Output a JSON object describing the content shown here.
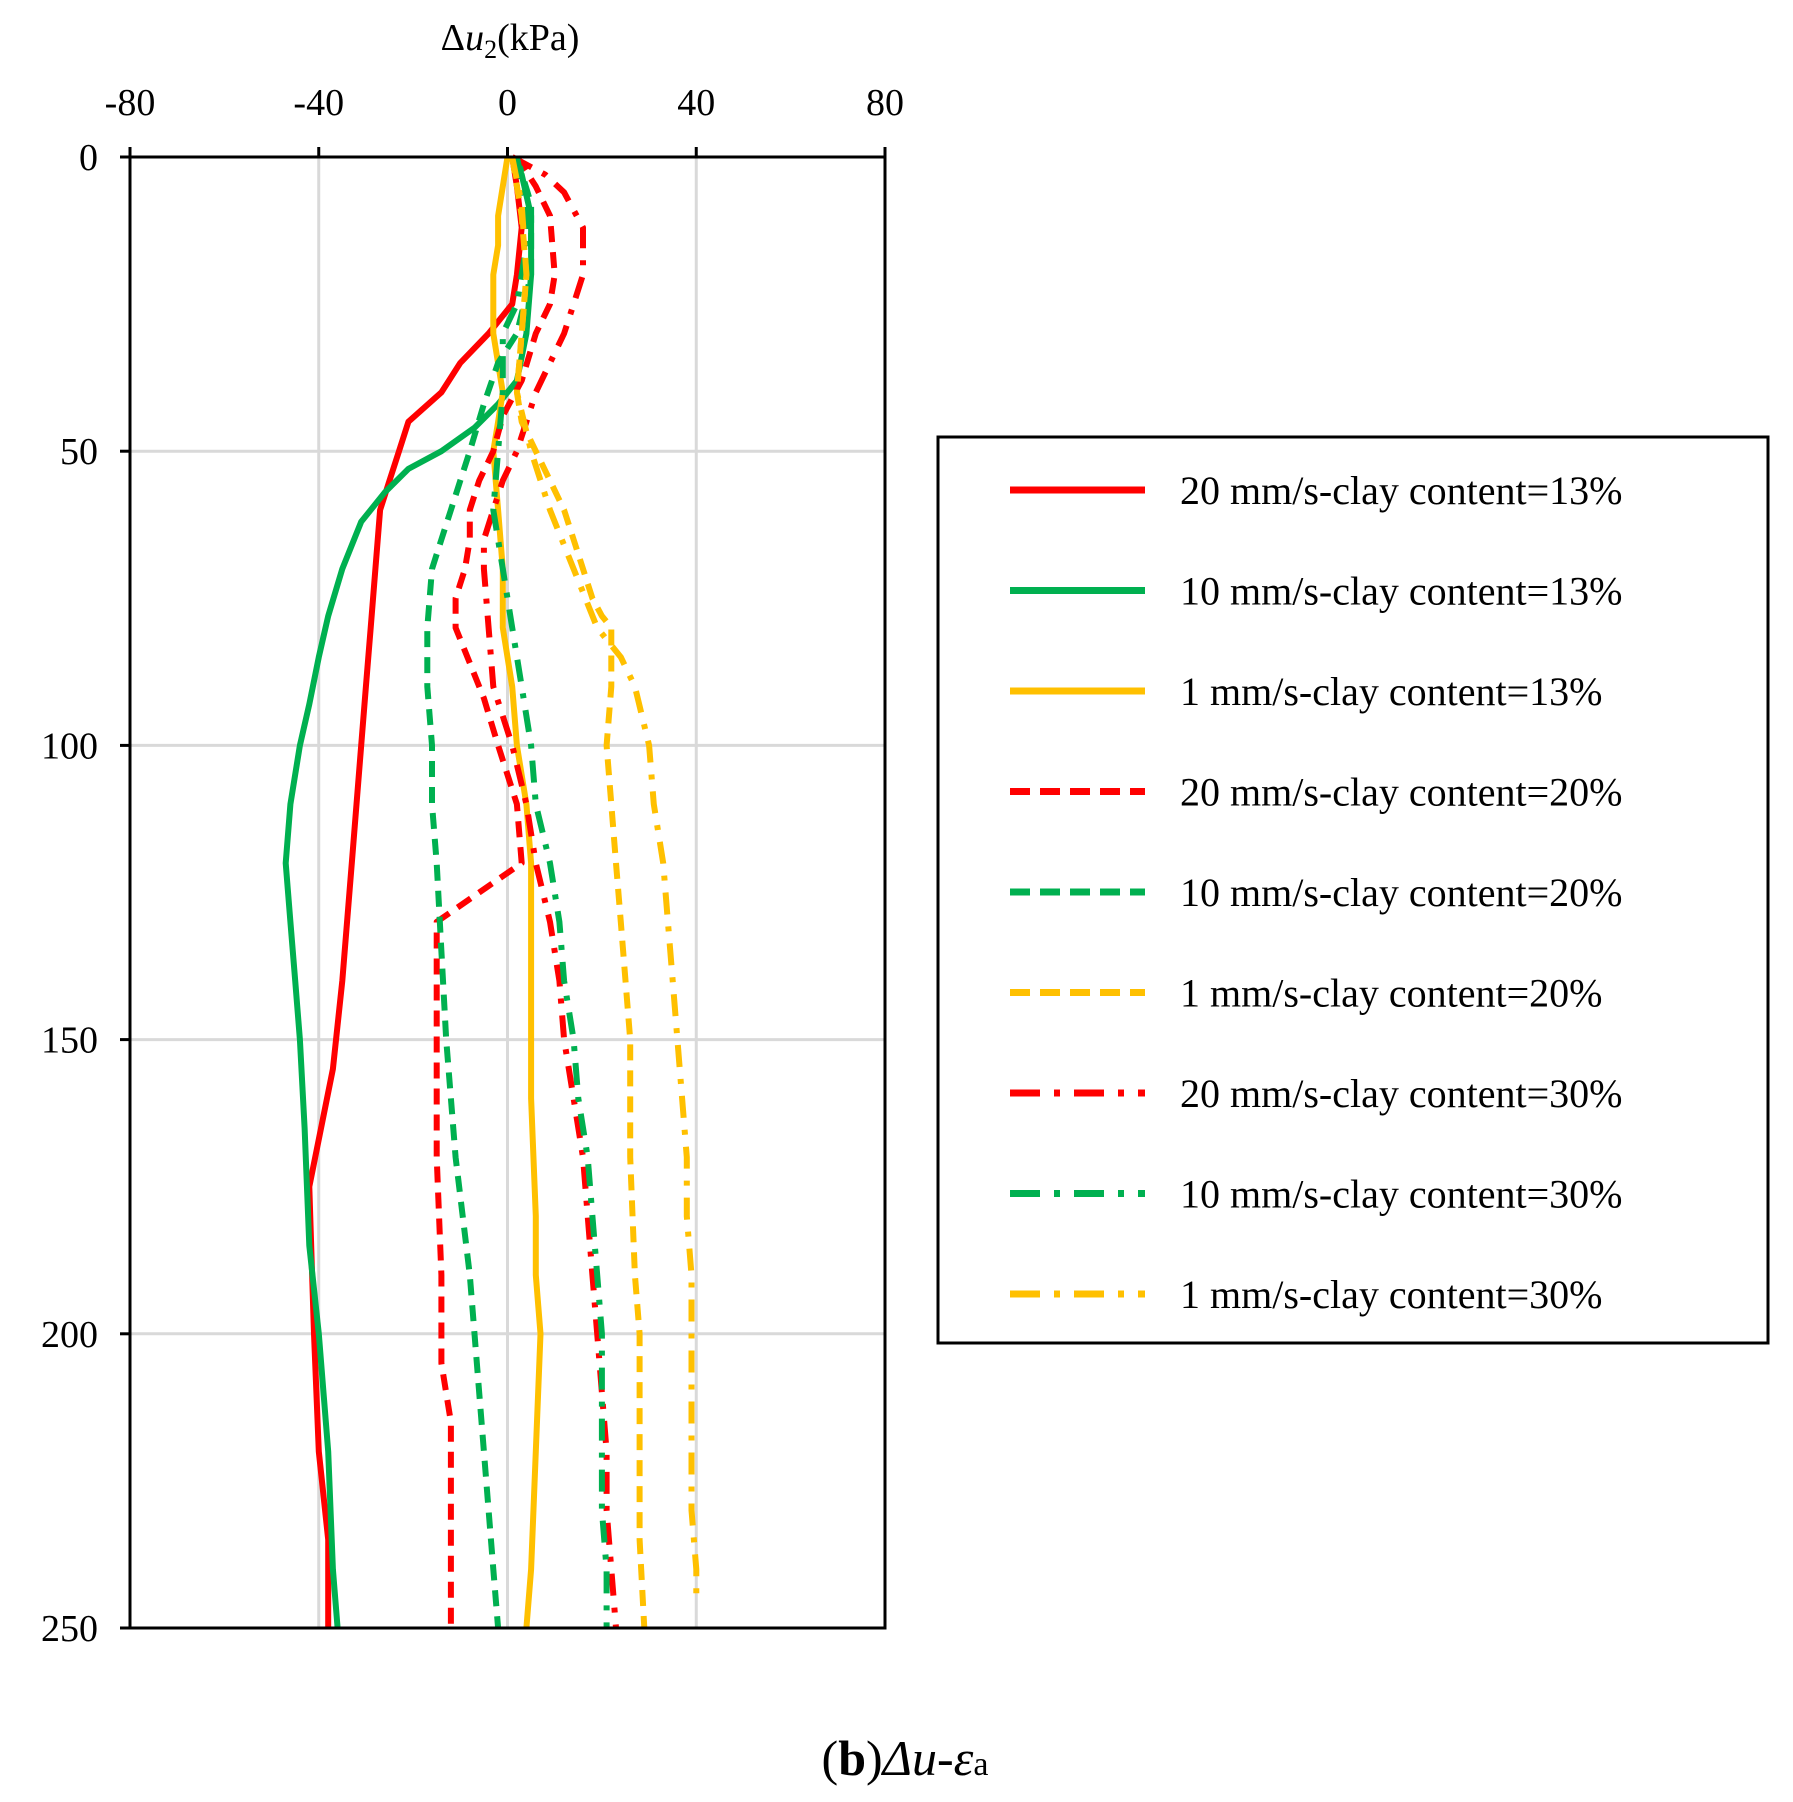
{
  "caption": {
    "label": "b",
    "text": "Δu-",
    "symbol": "ε",
    "subscript": "a"
  },
  "chart_data": {
    "type": "line",
    "x_axis": {
      "title_prefix": "Δ",
      "title_var": "u",
      "title_sub": "2",
      "title_unit": "(kPa)",
      "position": "top",
      "range": [
        -80,
        80
      ],
      "ticks": [
        "-80",
        "-40",
        "0",
        "40",
        "80"
      ],
      "tick_values": [
        -80,
        -40,
        0,
        40,
        80
      ]
    },
    "y_axis": {
      "range": [
        0,
        250
      ],
      "inverted": true,
      "ticks": [
        "0",
        "50",
        "100",
        "150",
        "200",
        "250"
      ],
      "tick_values": [
        0,
        50,
        100,
        150,
        200,
        250
      ]
    },
    "grid": true,
    "legend_position": "right",
    "series": [
      {
        "name": "20 mm/s-clay content=13%",
        "color": "#ff0000",
        "dash": "solid",
        "points": [
          [
            1,
            0
          ],
          [
            2,
            5
          ],
          [
            3,
            12
          ],
          [
            2,
            20
          ],
          [
            1,
            25
          ],
          [
            -4,
            30
          ],
          [
            -10,
            35
          ],
          [
            -14,
            40
          ],
          [
            -21,
            45
          ],
          [
            -23,
            50
          ],
          [
            -25,
            55
          ],
          [
            -27,
            60
          ],
          [
            -28,
            70
          ],
          [
            -29,
            80
          ],
          [
            -30,
            90
          ],
          [
            -31,
            100
          ],
          [
            -33,
            120
          ],
          [
            -35,
            140
          ],
          [
            -37,
            155
          ],
          [
            -42,
            175
          ],
          [
            -41,
            200
          ],
          [
            -40,
            220
          ],
          [
            -38,
            235
          ],
          [
            -38,
            250
          ]
        ]
      },
      {
        "name": "10 mm/s-clay content=13%",
        "color": "#00b050",
        "dash": "solid",
        "points": [
          [
            1,
            0
          ],
          [
            3,
            3
          ],
          [
            5,
            10
          ],
          [
            5,
            20
          ],
          [
            4,
            30
          ],
          [
            2,
            38
          ],
          [
            -2,
            42
          ],
          [
            -7,
            46
          ],
          [
            -14,
            50
          ],
          [
            -21,
            53
          ],
          [
            -26,
            57
          ],
          [
            -31,
            62
          ],
          [
            -35,
            70
          ],
          [
            -38,
            78
          ],
          [
            -40,
            85
          ],
          [
            -42,
            93
          ],
          [
            -44,
            100
          ],
          [
            -46,
            110
          ],
          [
            -47,
            120
          ],
          [
            -46,
            130
          ],
          [
            -45,
            140
          ],
          [
            -44,
            150
          ],
          [
            -43,
            165
          ],
          [
            -42,
            185
          ],
          [
            -40,
            200
          ],
          [
            -38,
            220
          ],
          [
            -37,
            240
          ],
          [
            -36,
            250
          ]
        ]
      },
      {
        "name": "1 mm/s-clay content=13%",
        "color": "#ffc000",
        "dash": "solid",
        "points": [
          [
            0,
            0
          ],
          [
            -1,
            5
          ],
          [
            -2,
            10
          ],
          [
            -2,
            15
          ],
          [
            -3,
            20
          ],
          [
            -3,
            30
          ],
          [
            -1,
            40
          ],
          [
            -2,
            45
          ],
          [
            -3,
            50
          ],
          [
            -2,
            60
          ],
          [
            -1,
            70
          ],
          [
            -1,
            80
          ],
          [
            1,
            90
          ],
          [
            2,
            100
          ],
          [
            4,
            110
          ],
          [
            5,
            120
          ],
          [
            5,
            140
          ],
          [
            5,
            160
          ],
          [
            6,
            180
          ],
          [
            6,
            190
          ],
          [
            7,
            200
          ],
          [
            6,
            220
          ],
          [
            5,
            240
          ],
          [
            4,
            250
          ]
        ]
      },
      {
        "name": "20 mm/s-clay content=20%",
        "color": "#ff0000",
        "dash": "dash",
        "points": [
          [
            2,
            0
          ],
          [
            6,
            5
          ],
          [
            9,
            10
          ],
          [
            10,
            20
          ],
          [
            9,
            25
          ],
          [
            6,
            30
          ],
          [
            3,
            38
          ],
          [
            -1,
            44
          ],
          [
            -3,
            50
          ],
          [
            -6,
            55
          ],
          [
            -8,
            60
          ],
          [
            -8,
            65
          ],
          [
            -9,
            70
          ],
          [
            -11,
            75
          ],
          [
            -11,
            80
          ],
          [
            -8,
            86
          ],
          [
            -5,
            92
          ],
          [
            -2,
            100
          ],
          [
            2,
            110
          ],
          [
            3,
            120
          ],
          [
            -15,
            130
          ],
          [
            -15,
            150
          ],
          [
            -15,
            170
          ],
          [
            -14,
            190
          ],
          [
            -14,
            205
          ],
          [
            -12,
            215
          ],
          [
            -12,
            230
          ],
          [
            -12,
            250
          ]
        ]
      },
      {
        "name": "10 mm/s-clay content=20%",
        "color": "#00b050",
        "dash": "dash",
        "points": [
          [
            2,
            0
          ],
          [
            5,
            8
          ],
          [
            5,
            15
          ],
          [
            5,
            20
          ],
          [
            2,
            30
          ],
          [
            -2,
            35
          ],
          [
            -5,
            42
          ],
          [
            -8,
            50
          ],
          [
            -10,
            55
          ],
          [
            -12,
            60
          ],
          [
            -14,
            65
          ],
          [
            -16,
            70
          ],
          [
            -17,
            80
          ],
          [
            -17,
            90
          ],
          [
            -16,
            100
          ],
          [
            -16,
            110
          ],
          [
            -15,
            120
          ],
          [
            -14,
            135
          ],
          [
            -13,
            150
          ],
          [
            -11,
            170
          ],
          [
            -8,
            190
          ],
          [
            -7,
            200
          ],
          [
            -5,
            220
          ],
          [
            -3,
            240
          ],
          [
            -2,
            250
          ]
        ]
      },
      {
        "name": "1 mm/s-clay content=20%",
        "color": "#ffc000",
        "dash": "dash",
        "points": [
          [
            1,
            0
          ],
          [
            3,
            10
          ],
          [
            4,
            20
          ],
          [
            3,
            30
          ],
          [
            2,
            40
          ],
          [
            3,
            45
          ],
          [
            6,
            50
          ],
          [
            9,
            55
          ],
          [
            12,
            60
          ],
          [
            14,
            65
          ],
          [
            16,
            70
          ],
          [
            18,
            75
          ],
          [
            20,
            78
          ],
          [
            22,
            80
          ],
          [
            22,
            90
          ],
          [
            21,
            100
          ],
          [
            22,
            110
          ],
          [
            23,
            120
          ],
          [
            24,
            130
          ],
          [
            25,
            140
          ],
          [
            26,
            150
          ],
          [
            26,
            160
          ],
          [
            26,
            170
          ],
          [
            27,
            190
          ],
          [
            28,
            200
          ],
          [
            28,
            220
          ],
          [
            28,
            235
          ],
          [
            29,
            250
          ]
        ]
      },
      {
        "name": "20 mm/s-clay content=30%",
        "color": "#ff0000",
        "dash": "dashdot",
        "points": [
          [
            1,
            0
          ],
          [
            8,
            3
          ],
          [
            12,
            6
          ],
          [
            16,
            12
          ],
          [
            16,
            20
          ],
          [
            14,
            25
          ],
          [
            12,
            30
          ],
          [
            9,
            35
          ],
          [
            6,
            40
          ],
          [
            4,
            45
          ],
          [
            2,
            50
          ],
          [
            -1,
            55
          ],
          [
            -3,
            60
          ],
          [
            -5,
            65
          ],
          [
            -5,
            70
          ],
          [
            -4,
            80
          ],
          [
            -3,
            90
          ],
          [
            1,
            100
          ],
          [
            4,
            110
          ],
          [
            6,
            120
          ],
          [
            9,
            130
          ],
          [
            11,
            140
          ],
          [
            12,
            150
          ],
          [
            14,
            160
          ],
          [
            16,
            170
          ],
          [
            17,
            180
          ],
          [
            18,
            190
          ],
          [
            19,
            200
          ],
          [
            20,
            210
          ],
          [
            21,
            220
          ],
          [
            21,
            230
          ],
          [
            22,
            240
          ],
          [
            23,
            250
          ]
        ]
      },
      {
        "name": "10 mm/s-clay content=30%",
        "color": "#00b050",
        "dash": "dashdot",
        "points": [
          [
            2,
            0
          ],
          [
            4,
            8
          ],
          [
            4,
            15
          ],
          [
            2,
            25
          ],
          [
            -1,
            30
          ],
          [
            -1,
            40
          ],
          [
            -2,
            50
          ],
          [
            -3,
            60
          ],
          [
            -1,
            70
          ],
          [
            1,
            80
          ],
          [
            3,
            90
          ],
          [
            5,
            100
          ],
          [
            6,
            110
          ],
          [
            9,
            120
          ],
          [
            11,
            130
          ],
          [
            12,
            140
          ],
          [
            14,
            150
          ],
          [
            15,
            160
          ],
          [
            17,
            170
          ],
          [
            18,
            180
          ],
          [
            19,
            190
          ],
          [
            20,
            200
          ],
          [
            20,
            210
          ],
          [
            20,
            220
          ],
          [
            20,
            230
          ],
          [
            21,
            240
          ],
          [
            21,
            250
          ]
        ]
      },
      {
        "name": "1 mm/s-clay content=30%",
        "color": "#ffc000",
        "dash": "dashdot",
        "points": [
          [
            1,
            0
          ],
          [
            3,
            8
          ],
          [
            4,
            20
          ],
          [
            3,
            30
          ],
          [
            2,
            40
          ],
          [
            5,
            50
          ],
          [
            9,
            60
          ],
          [
            14,
            70
          ],
          [
            19,
            80
          ],
          [
            24,
            85
          ],
          [
            27,
            90
          ],
          [
            30,
            100
          ],
          [
            31,
            110
          ],
          [
            33,
            120
          ],
          [
            34,
            130
          ],
          [
            35,
            140
          ],
          [
            36,
            150
          ],
          [
            37,
            160
          ],
          [
            38,
            170
          ],
          [
            38,
            180
          ],
          [
            39,
            190
          ],
          [
            39,
            200
          ],
          [
            39,
            210
          ],
          [
            39,
            220
          ],
          [
            39,
            230
          ],
          [
            40,
            240
          ],
          [
            40,
            245
          ]
        ]
      }
    ]
  }
}
